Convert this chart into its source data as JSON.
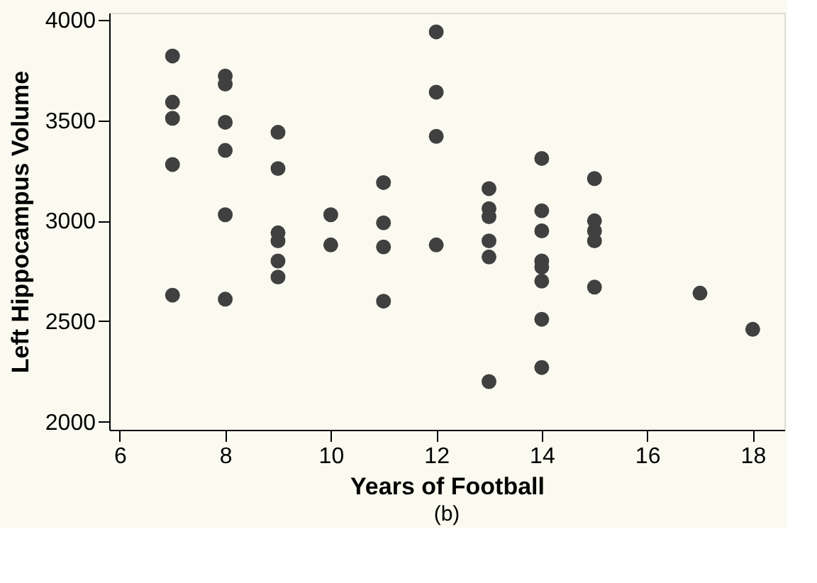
{
  "chart_data": {
    "type": "scatter",
    "xlabel": "Years of Football",
    "ylabel": "Left Hippocampus Volume",
    "annotations": [
      "(b)"
    ],
    "x": [
      7,
      7,
      7,
      7,
      7,
      8,
      8,
      8,
      8,
      8,
      8,
      9,
      9,
      9,
      9,
      9,
      9,
      10,
      10,
      11,
      11,
      11,
      11,
      12,
      12,
      12,
      12,
      13,
      13,
      13,
      13,
      13,
      13,
      14,
      14,
      14,
      14,
      14,
      14,
      14,
      14,
      15,
      15,
      15,
      15,
      15,
      17,
      18
    ],
    "series": [
      {
        "color": "#404040",
        "values": [
          3820,
          3590,
          3510,
          3280,
          2630,
          3720,
          3680,
          3490,
          3350,
          3030,
          2610,
          3440,
          3260,
          2940,
          2900,
          2800,
          2720,
          3030,
          2880,
          3190,
          2990,
          2870,
          2600,
          3940,
          3640,
          3420,
          2880,
          3160,
          3060,
          3020,
          2900,
          2820,
          2200,
          3310,
          3050,
          2950,
          2800,
          2770,
          2700,
          2510,
          2270,
          3210,
          3000,
          2950,
          2900,
          2670,
          2640,
          2460
        ]
      }
    ],
    "xlim": [
      5.8,
      18.6
    ],
    "ylim": [
      1960,
      4035
    ],
    "xticks": [
      6,
      8,
      10,
      12,
      14,
      16,
      18
    ],
    "yticks": [
      2000,
      2500,
      3000,
      3500,
      4000
    ],
    "grid": false,
    "marker": "circle"
  }
}
